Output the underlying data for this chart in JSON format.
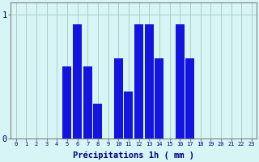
{
  "hours": [
    0,
    1,
    2,
    3,
    4,
    5,
    6,
    7,
    8,
    9,
    10,
    11,
    12,
    13,
    14,
    15,
    16,
    17,
    18,
    19,
    20,
    21,
    22,
    23
  ],
  "values": [
    0,
    0,
    0,
    0,
    0,
    0.58,
    0.92,
    0.58,
    0.28,
    0,
    0.65,
    0.38,
    0.92,
    0.92,
    0.65,
    0,
    0.92,
    0.65,
    0,
    0,
    0,
    0,
    0,
    0
  ],
  "bar_color": "#1414e0",
  "background_color": "#d8f5f5",
  "grid_color": "#aecccc",
  "xlabel": "Précipitations 1h ( mm )",
  "ytick_labels": [
    "0",
    "1"
  ],
  "ytick_vals": [
    0,
    1
  ],
  "ylim": [
    0,
    1.1
  ],
  "xlim": [
    -0.5,
    23.5
  ],
  "tick_color": "#000080",
  "axis_color": "#808080",
  "xtick_fontsize": 5.0,
  "ytick_fontsize": 7.5,
  "xlabel_fontsize": 7.5
}
